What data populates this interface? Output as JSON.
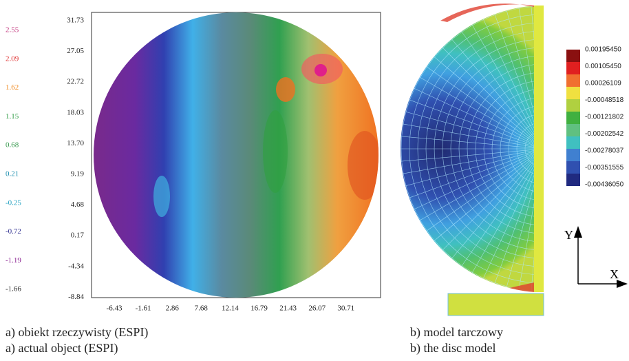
{
  "left_panel": {
    "scale_labels": [
      "2.55",
      "2.09",
      "1.62",
      "1.15",
      "0.68",
      "0.21",
      "-0.25",
      "-0.72",
      "-1.19",
      "-1.66"
    ],
    "scale_colors": [
      "#c0307a",
      "#e03030",
      "#f08a20",
      "#2a9a40",
      "#3a9a50",
      "#2090b0",
      "#20a0c0",
      "#303090",
      "#8a2090",
      "#333333"
    ],
    "y_labels": [
      "31.73",
      "27.05",
      "22.72",
      "18.03",
      "13.70",
      "9.19",
      "4.68",
      "0.17",
      "-4.34",
      "-8.84"
    ],
    "x_labels": [
      "-6.43",
      "-1.61",
      "2.86",
      "7.68",
      "12.14",
      "16.79",
      "21.43",
      "26.07",
      "30.71"
    ]
  },
  "right_panel": {
    "legend_labels": [
      "0.00195450",
      "0.00105450",
      "0.00026109",
      "-0.00048518",
      "-0.00121802",
      "-0.00202542",
      "-0.00278037",
      "-0.00351555",
      "-0.00436050"
    ],
    "axis_y": "Y",
    "axis_x": "X"
  },
  "captions": {
    "left": [
      "a) obiekt rzeczywisty (ESPI)",
      "a) actual object (ESPI)"
    ],
    "right": [
      "b) model tarczowy",
      "b) the disc model"
    ]
  }
}
